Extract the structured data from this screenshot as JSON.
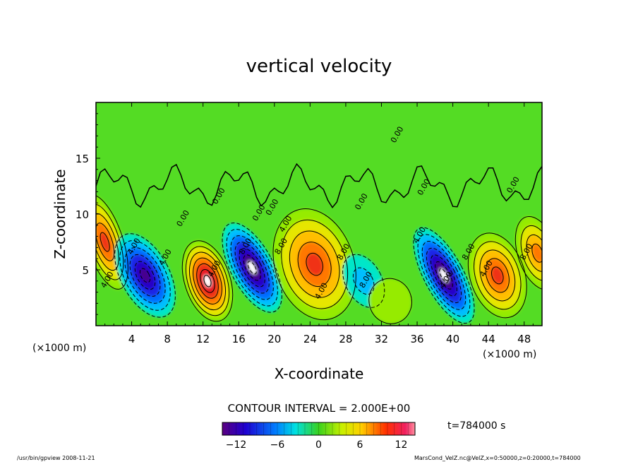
{
  "chart_data": {
    "type": "heatmap",
    "title": "vertical velocity",
    "xlabel": "X-coordinate",
    "ylabel": "Z-coordinate",
    "x_unit_left": "(×1000 m)",
    "x_unit_right": "(×1000 m)",
    "x_ticks": [
      "4",
      "8",
      "12",
      "16",
      "20",
      "24",
      "28",
      "32",
      "36",
      "40",
      "44",
      "48"
    ],
    "y_ticks": [
      "5",
      "10",
      "15"
    ],
    "xlim": [
      0,
      50
    ],
    "ylim": [
      0,
      20
    ],
    "contour_interval_text": "CONTOUR INTERVAL = 2.000E+00",
    "colorbar_ticks": [
      "−12",
      "−6",
      "0",
      "6",
      "12"
    ],
    "colorbar_range": [
      -14,
      14
    ],
    "time_label": "t=784000  s",
    "contour_labels": [
      "0.00",
      "0.00",
      "0.00",
      "0.00",
      "0.00",
      "0.00",
      "0.00",
      "0.00",
      "4.00",
      "4.00",
      "4.00",
      "8.00",
      "8.00",
      "8.00",
      "4.00",
      "4.00",
      "8.00",
      "4.00",
      "8.00",
      "4.00",
      "4.00",
      "8.00",
      "4.00"
    ],
    "cells": [
      {
        "x": 1,
        "z": 7.5,
        "w": 10,
        "sx": 1.2,
        "sz": 2.6
      },
      {
        "x": 5.5,
        "z": 4.5,
        "w": -12,
        "sx": 1.6,
        "sz": 2.4
      },
      {
        "x": 12.5,
        "z": 4,
        "w": 14,
        "sx": 1.5,
        "sz": 2.2
      },
      {
        "x": 17.5,
        "z": 5.2,
        "w": -14,
        "sx": 1.4,
        "sz": 2.6
      },
      {
        "x": 24.5,
        "z": 5.5,
        "w": 10,
        "sx": 2.6,
        "sz": 3
      },
      {
        "x": 30,
        "z": 4,
        "w": -4,
        "sx": 1.2,
        "sz": 1.5
      },
      {
        "x": 33,
        "z": 2.2,
        "w": 3,
        "sx": 1.4,
        "sz": 1.2
      },
      {
        "x": 39,
        "z": 4.5,
        "w": -14,
        "sx": 1.3,
        "sz": 2.8
      },
      {
        "x": 45,
        "z": 4.5,
        "w": 10,
        "sx": 1.8,
        "sz": 2.3
      },
      {
        "x": 49.5,
        "z": 6.5,
        "w": 8,
        "sx": 1.3,
        "sz": 2
      }
    ]
  },
  "footer": {
    "left": "/usr/bin/gpview  2008-11-21",
    "right": "MarsCond_VelZ.nc@VelZ,x=0:50000,z=0:20000,t=784000"
  }
}
